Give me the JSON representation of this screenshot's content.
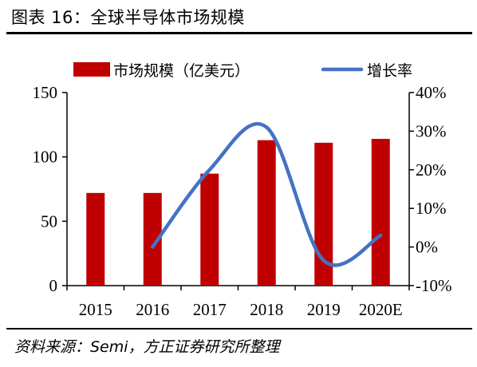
{
  "figure": {
    "title": "图表 16：全球半导体市场规模",
    "source": "资料来源：Semi，方正证券研究所整理"
  },
  "chart_data": {
    "type": "bar+line",
    "categories": [
      "2015",
      "2016",
      "2017",
      "2018",
      "2019",
      "2020E"
    ],
    "series": [
      {
        "name": "市场规模（亿美元）",
        "type": "bar",
        "axis": "left",
        "color": "#c00000",
        "values": [
          72,
          72,
          87,
          113,
          111,
          114
        ]
      },
      {
        "name": "增长率",
        "type": "line",
        "axis": "right",
        "color": "#4472c4",
        "smooth": true,
        "values": [
          null,
          0.0,
          20.0,
          31.0,
          -3.5,
          3.0
        ]
      }
    ],
    "y_left": {
      "lim": [
        0,
        150
      ],
      "ticks": [
        0,
        50,
        100,
        150
      ]
    },
    "y_right": {
      "lim": [
        -10,
        40
      ],
      "ticks": [
        -10,
        0,
        10,
        20,
        30,
        40
      ],
      "unit": "%"
    },
    "legend": "top",
    "grid": false
  }
}
